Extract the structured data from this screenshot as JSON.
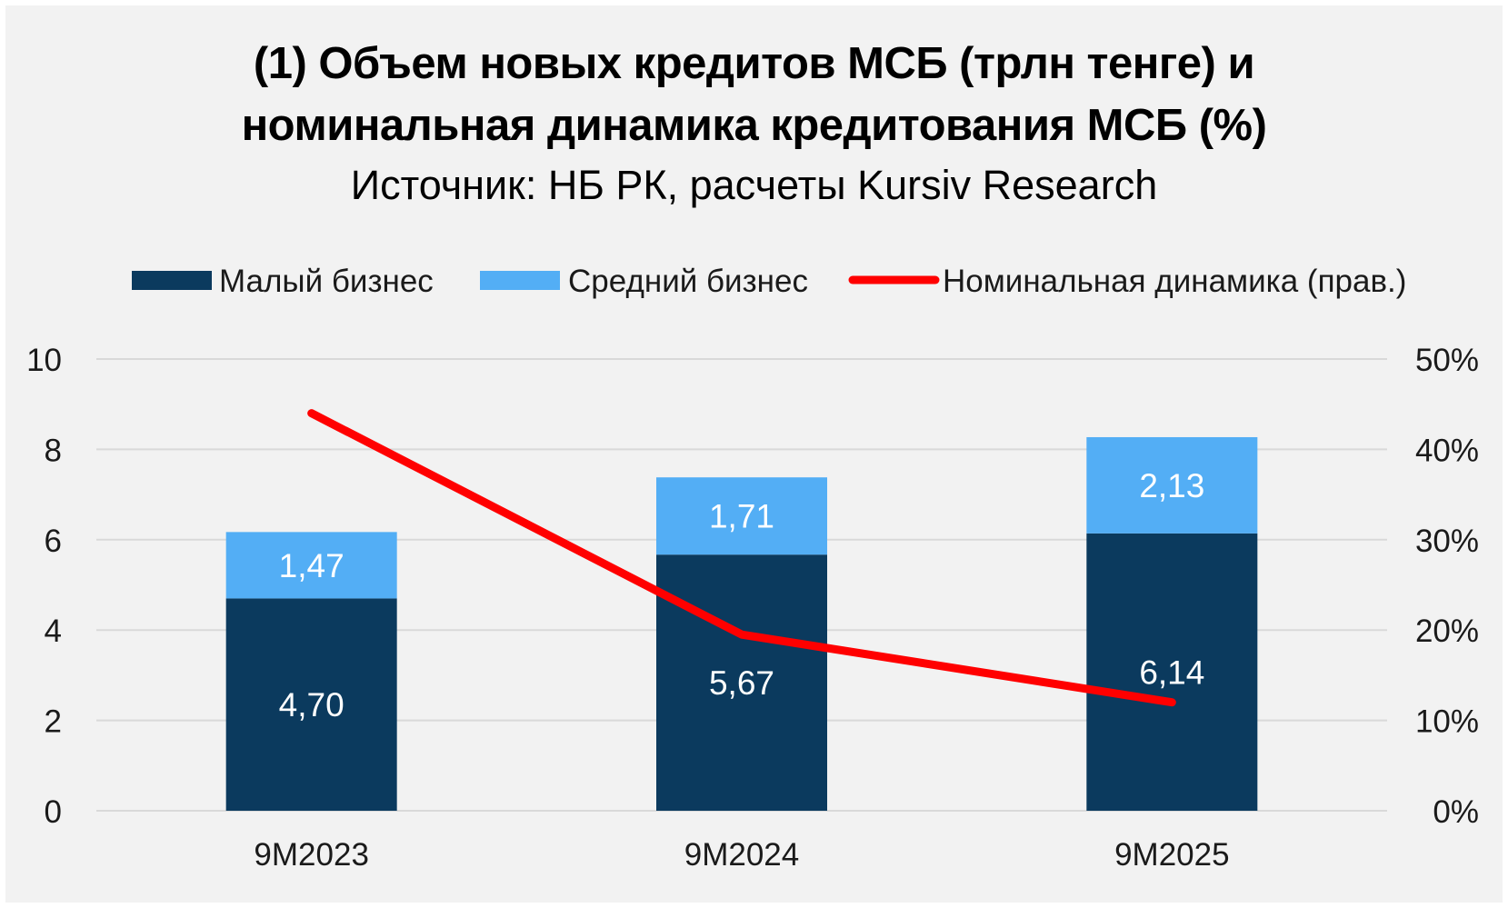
{
  "chart_data": {
    "type": "bar",
    "stacked": true,
    "title_line1": "(1) Объем новых кредитов МСБ (трлн тенге) и",
    "title_line2": "номинальная динамика кредитования МСБ (%)",
    "subtitle": "Источник: НБ РК, расчеты Kursiv Research",
    "categories": [
      "9M2023",
      "9M2024",
      "9M2025"
    ],
    "series": [
      {
        "name": "Малый бизнес",
        "kind": "bar",
        "axis": "left",
        "color": "#0b3a5e",
        "values": [
          4.7,
          5.67,
          6.14
        ],
        "labels": [
          "4,70",
          "5,67",
          "6,14"
        ]
      },
      {
        "name": "Средний бизнес",
        "kind": "bar",
        "axis": "left",
        "color": "#53aef5",
        "values": [
          1.47,
          1.71,
          2.13
        ],
        "labels": [
          "1,47",
          "1,71",
          "2,13"
        ]
      },
      {
        "name": "Номинальная динамика (прав.)",
        "kind": "line",
        "axis": "right",
        "color": "#ff0000",
        "values": [
          44,
          19.5,
          12
        ]
      }
    ],
    "y_left": {
      "min": 0,
      "max": 10,
      "ticks": [
        "0",
        "2",
        "4",
        "6",
        "8",
        "10"
      ]
    },
    "y_right": {
      "min": 0,
      "max": 50,
      "unit": "%",
      "ticks": [
        "0%",
        "10%",
        "20%",
        "30%",
        "40%",
        "50%"
      ]
    },
    "grid": true,
    "legend_position": "top"
  }
}
